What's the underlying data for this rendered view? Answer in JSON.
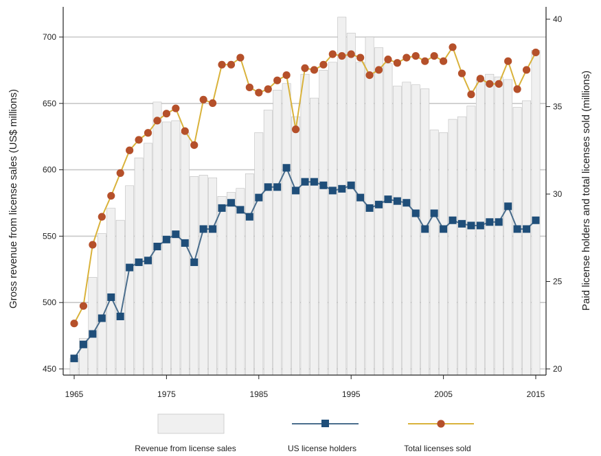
{
  "chart_data": {
    "type": "bar",
    "xlabel": "",
    "ylabel": "Gross revenue from license sales (US$ millions)",
    "y2label": "Paid license holders and total licenses sold (millions)",
    "xlim": [
      1965,
      2015
    ],
    "ylim": [
      450,
      710
    ],
    "y2lim": [
      20,
      40
    ],
    "x_ticks": [
      1965,
      1975,
      1985,
      1995,
      2005,
      2015
    ],
    "y_ticks": [
      450,
      500,
      550,
      600,
      650,
      700
    ],
    "y2_ticks": [
      20,
      25,
      30,
      35,
      40
    ],
    "grid": true,
    "legend_position": "bottom",
    "x": [
      1965,
      1966,
      1967,
      1968,
      1969,
      1970,
      1971,
      1972,
      1973,
      1974,
      1975,
      1976,
      1977,
      1978,
      1979,
      1980,
      1981,
      1982,
      1983,
      1984,
      1985,
      1986,
      1987,
      1988,
      1989,
      1990,
      1991,
      1992,
      1993,
      1994,
      1995,
      1996,
      1997,
      1998,
      1999,
      2000,
      2001,
      2002,
      2003,
      2004,
      2005,
      2006,
      2007,
      2008,
      2009,
      2010,
      2011,
      2012,
      2013,
      2014,
      2015
    ],
    "series": [
      {
        "name": "Revenue from license sales",
        "axis": "left",
        "kind": "bar",
        "color": "#f0f0f0",
        "values": [
          458,
          473,
          519,
          552,
          571,
          562,
          588,
          609,
          620,
          651,
          636,
          637,
          628,
          595,
          596,
          594,
          580,
          583,
          586,
          597,
          628,
          645,
          660,
          665,
          640,
          672,
          654,
          675,
          681,
          715,
          703,
          681,
          700,
          692,
          680,
          663,
          666,
          664,
          661,
          630,
          628,
          638,
          640,
          648,
          668,
          672,
          670,
          668,
          647,
          652,
          690
        ]
      },
      {
        "name": "US license holders",
        "axis": "right",
        "kind": "line",
        "color": "#4a6d8c",
        "marker_color": "#1f4e79",
        "values": [
          20.6,
          21.4,
          22.0,
          22.9,
          24.1,
          23.0,
          25.8,
          26.1,
          26.2,
          27.0,
          27.4,
          27.7,
          27.2,
          26.1,
          28.0,
          28.0,
          29.2,
          29.5,
          29.1,
          28.7,
          29.8,
          30.4,
          30.4,
          31.5,
          30.2,
          30.7,
          30.7,
          30.5,
          30.2,
          30.3,
          30.5,
          29.8,
          29.2,
          29.4,
          29.7,
          29.6,
          29.5,
          28.9,
          28.0,
          28.9,
          28.0,
          28.5,
          28.3,
          28.2,
          28.2,
          28.4,
          28.4,
          29.3,
          28.0,
          28.0,
          28.5
        ]
      },
      {
        "name": "Total licenses sold",
        "axis": "right",
        "kind": "line",
        "color": "#d9b23a",
        "marker_color": "#b5502a",
        "values": [
          22.6,
          23.6,
          27.1,
          28.7,
          29.9,
          31.2,
          32.5,
          33.1,
          33.5,
          34.2,
          34.6,
          34.9,
          33.6,
          32.8,
          35.4,
          35.2,
          37.4,
          37.4,
          37.8,
          36.1,
          35.8,
          36.0,
          36.5,
          36.8,
          33.7,
          37.2,
          37.1,
          37.4,
          38.0,
          37.9,
          38.0,
          37.8,
          36.8,
          37.1,
          37.7,
          37.5,
          37.8,
          37.9,
          37.6,
          37.9,
          37.6,
          38.4,
          36.9,
          35.7,
          36.6,
          36.3,
          36.3,
          37.6,
          36.0,
          37.1,
          38.1
        ]
      }
    ]
  }
}
